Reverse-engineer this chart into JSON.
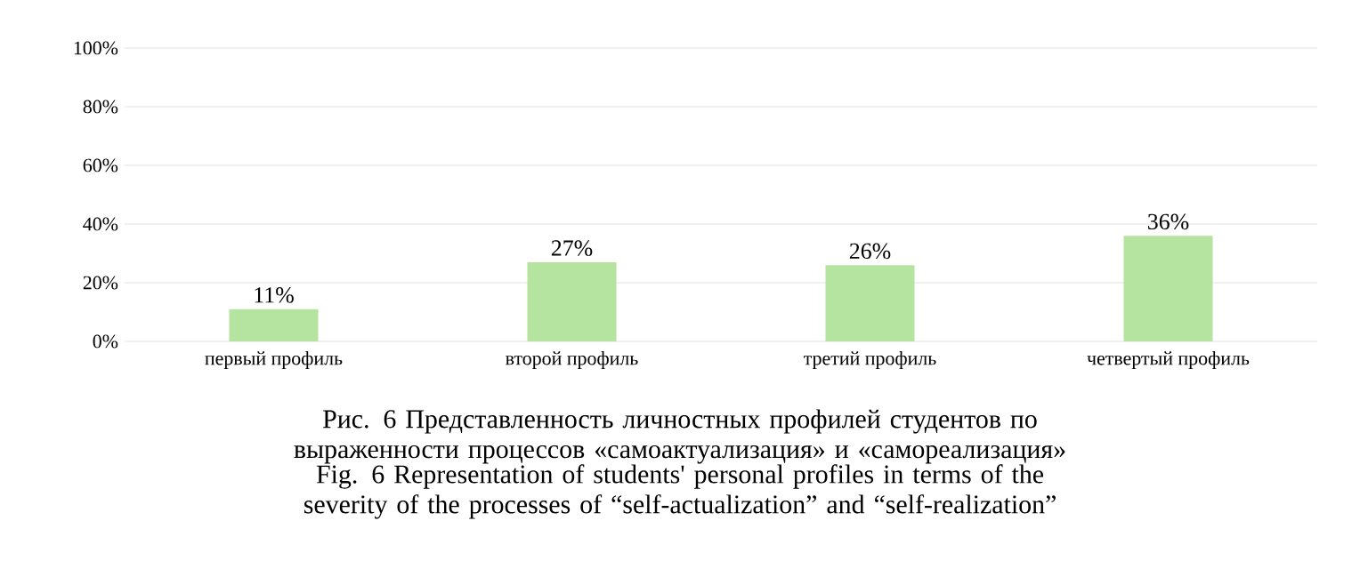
{
  "chart_data": {
    "type": "bar",
    "categories": [
      "первый профиль",
      "второй профиль",
      "третий профиль",
      "четвертый профиль"
    ],
    "values": [
      11,
      27,
      26,
      36
    ],
    "value_labels": [
      "11%",
      "27%",
      "26%",
      "36%"
    ],
    "color": "#b5e3a0",
    "ylim": [
      0,
      100
    ],
    "yticks": [
      {
        "value": 0,
        "label": "0%"
      },
      {
        "value": 20,
        "label": "20%"
      },
      {
        "value": 40,
        "label": "40%"
      },
      {
        "value": 60,
        "label": "60%"
      },
      {
        "value": 80,
        "label": "80%"
      },
      {
        "value": 100,
        "label": "100%"
      }
    ],
    "grid": "y",
    "annotations": [
      "Рис. 6 Представленность личностных профилей студентов по выраженности процессов «самоактуализация» и «самореализация»",
      "Fig. 6 Representation of students' personal profiles in terms of the severity of the processes of “self-actualization” and “self-realization”"
    ]
  }
}
